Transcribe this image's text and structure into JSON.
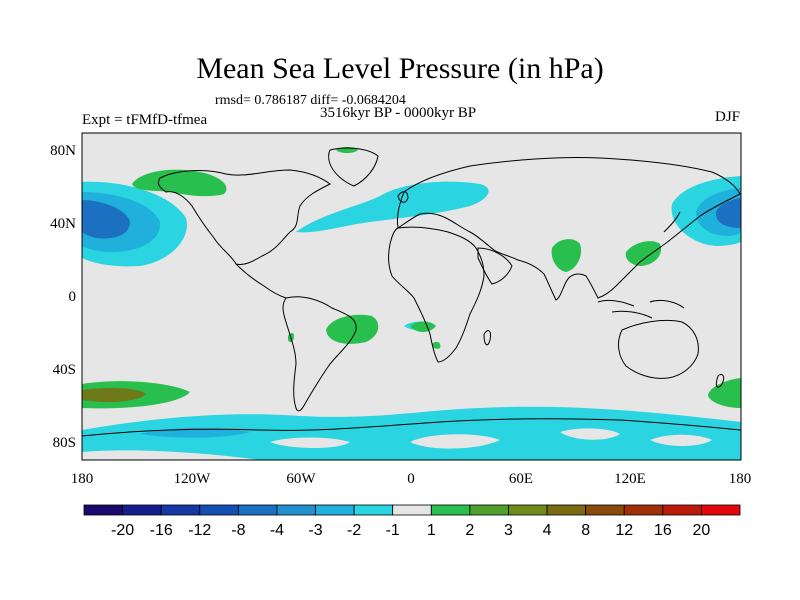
{
  "header": {
    "title": "Mean Sea Level Pressure (in hPa)",
    "stats": "rmsd= 0.786187 diff= -0.0684204",
    "period": "3516kyr BP - 0000kyr BP",
    "experiment": "Expt = tFMfD-tfmea",
    "season": "DJF"
  },
  "axes": {
    "lon_ticks": [
      "180",
      "120W",
      "60W",
      "0",
      "60E",
      "120E",
      "180"
    ],
    "lat_ticks": [
      "80N",
      "40N",
      "0",
      "40S",
      "80S"
    ]
  },
  "colorbar": {
    "colors": [
      "#1a0a6b",
      "#151e8c",
      "#1438a6",
      "#1450b4",
      "#1c70c2",
      "#2290d0",
      "#20b0dc",
      "#2ad4e0",
      "#e6e6e6",
      "#28bf4e",
      "#4fa02c",
      "#6e8c1a",
      "#7a6a12",
      "#8a4a0c",
      "#a0300a",
      "#be1a0c",
      "#e2070c"
    ],
    "labels": [
      "-20",
      "-16",
      "-12",
      "-8",
      "-4",
      "-3",
      "-2",
      "-1",
      "1",
      "2",
      "3",
      "4",
      "8",
      "12",
      "16",
      "20"
    ]
  },
  "colors": {
    "background": "#e6e6e6",
    "cyan": "#2ad4e0",
    "light_blue": "#20b0dc",
    "blue": "#1c70c2",
    "green": "#28bf4e",
    "olive": "#6e7a1a"
  }
}
